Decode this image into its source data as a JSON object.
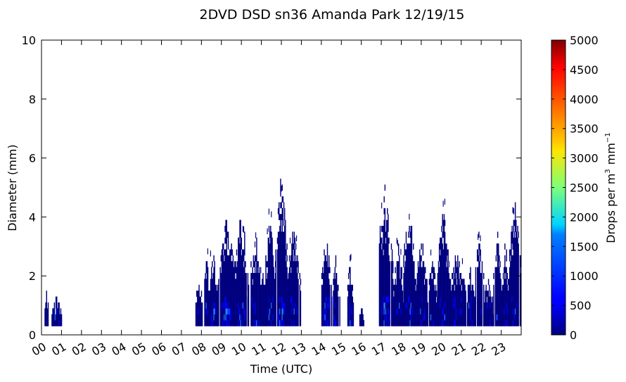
{
  "chart_data": {
    "type": "heatmap",
    "title": "2DVD DSD sn36 Amanda Park 12/19/15",
    "xlabel": "Time (UTC)",
    "ylabel": "Diameter (mm)",
    "xlim": [
      0,
      24
    ],
    "ylim": [
      0,
      10
    ],
    "x_tick_labels": [
      "00",
      "01",
      "02",
      "03",
      "04",
      "05",
      "06",
      "07",
      "08",
      "09",
      "10",
      "11",
      "12",
      "13",
      "14",
      "15",
      "16",
      "17",
      "18",
      "19",
      "20",
      "21",
      "22",
      "23"
    ],
    "y_ticks": [
      0,
      2,
      4,
      6,
      8,
      10
    ],
    "colorbar": {
      "label": "Drops per m³  mm⁻¹",
      "label_main": "Drops per m",
      "label_exp": "3",
      "label_unit": "mm",
      "label_unit_exp": "−1",
      "range": [
        0,
        5000
      ],
      "ticks": [
        0,
        500,
        1000,
        1500,
        2000,
        2500,
        3000,
        3500,
        4000,
        4500,
        5000
      ],
      "colormap": "jet"
    },
    "colors": {
      "low": "#00007f",
      "mid": "#0000ff",
      "bright": "#1e7fff",
      "peak": "#3fa0ff"
    },
    "events": [
      {
        "start": 0.15,
        "end": 0.35,
        "dmax": 1.5,
        "intensity": 0.05
      },
      {
        "start": 0.5,
        "end": 1.0,
        "dmax": 1.3,
        "intensity": 0.05
      },
      {
        "start": 7.7,
        "end": 8.05,
        "dmax": 2.1,
        "intensity": 0.1
      },
      {
        "start": 8.1,
        "end": 8.4,
        "dmax": 2.9,
        "intensity": 0.15
      },
      {
        "start": 8.4,
        "end": 8.8,
        "dmax": 2.9,
        "intensity": 0.25
      },
      {
        "start": 8.8,
        "end": 9.7,
        "dmax": 3.9,
        "intensity": 0.4
      },
      {
        "start": 9.7,
        "end": 10.3,
        "dmax": 4.3,
        "intensity": 0.2
      },
      {
        "start": 10.3,
        "end": 11.2,
        "dmax": 3.1,
        "intensity": 0.15
      },
      {
        "start": 11.2,
        "end": 11.7,
        "dmax": 4.3,
        "intensity": 0.2
      },
      {
        "start": 11.7,
        "end": 12.3,
        "dmax": 5.4,
        "intensity": 0.3
      },
      {
        "start": 12.3,
        "end": 12.95,
        "dmax": 3.8,
        "intensity": 0.25
      },
      {
        "start": 14.0,
        "end": 14.5,
        "dmax": 3.4,
        "intensity": 0.3
      },
      {
        "start": 14.5,
        "end": 14.9,
        "dmax": 2.6,
        "intensity": 0.15
      },
      {
        "start": 15.3,
        "end": 15.6,
        "dmax": 2.6,
        "intensity": 0.1
      },
      {
        "start": 15.9,
        "end": 16.1,
        "dmax": 1.0,
        "intensity": 0.05
      },
      {
        "start": 16.8,
        "end": 17.6,
        "dmax": 5.0,
        "intensity": 0.4
      },
      {
        "start": 17.6,
        "end": 18.1,
        "dmax": 3.0,
        "intensity": 0.15
      },
      {
        "start": 18.1,
        "end": 18.7,
        "dmax": 4.4,
        "intensity": 0.25
      },
      {
        "start": 18.7,
        "end": 19.3,
        "dmax": 3.2,
        "intensity": 0.15
      },
      {
        "start": 19.3,
        "end": 19.8,
        "dmax": 2.5,
        "intensity": 0.1
      },
      {
        "start": 19.8,
        "end": 20.4,
        "dmax": 4.3,
        "intensity": 0.15
      },
      {
        "start": 20.4,
        "end": 21.2,
        "dmax": 2.8,
        "intensity": 0.1
      },
      {
        "start": 21.2,
        "end": 21.7,
        "dmax": 2.2,
        "intensity": 0.1
      },
      {
        "start": 21.7,
        "end": 22.1,
        "dmax": 3.8,
        "intensity": 0.1
      },
      {
        "start": 22.1,
        "end": 22.6,
        "dmax": 2.0,
        "intensity": 0.1
      },
      {
        "start": 22.6,
        "end": 23.0,
        "dmax": 3.6,
        "intensity": 0.1
      },
      {
        "start": 23.0,
        "end": 23.4,
        "dmax": 3.0,
        "intensity": 0.1
      },
      {
        "start": 23.4,
        "end": 24.0,
        "dmax": 4.7,
        "intensity": 0.2
      }
    ]
  }
}
